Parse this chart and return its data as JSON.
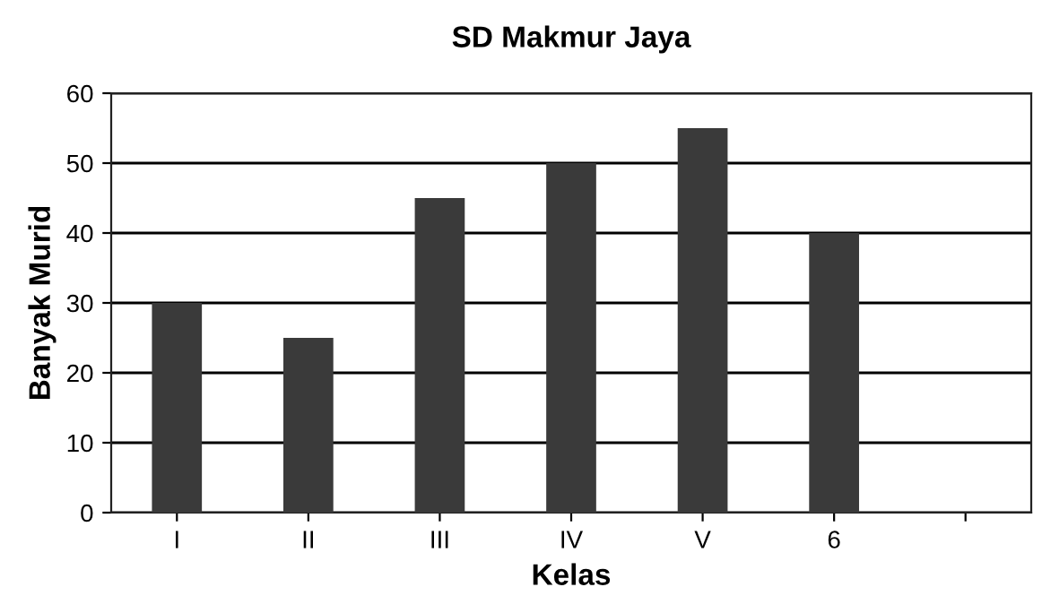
{
  "chart_data": {
    "type": "bar",
    "title": "SD Makmur Jaya",
    "xlabel": "Kelas",
    "ylabel": "Banyak Murid",
    "categories": [
      "I",
      "II",
      "III",
      "IV",
      "V",
      "6",
      null
    ],
    "values": [
      30,
      25,
      45,
      50,
      55,
      40,
      null
    ],
    "color": "#3a3a3a",
    "ylim": [
      0,
      60
    ],
    "yticks": [
      0,
      10,
      20,
      30,
      40,
      50,
      60
    ],
    "grid": "y",
    "legend": false
  }
}
